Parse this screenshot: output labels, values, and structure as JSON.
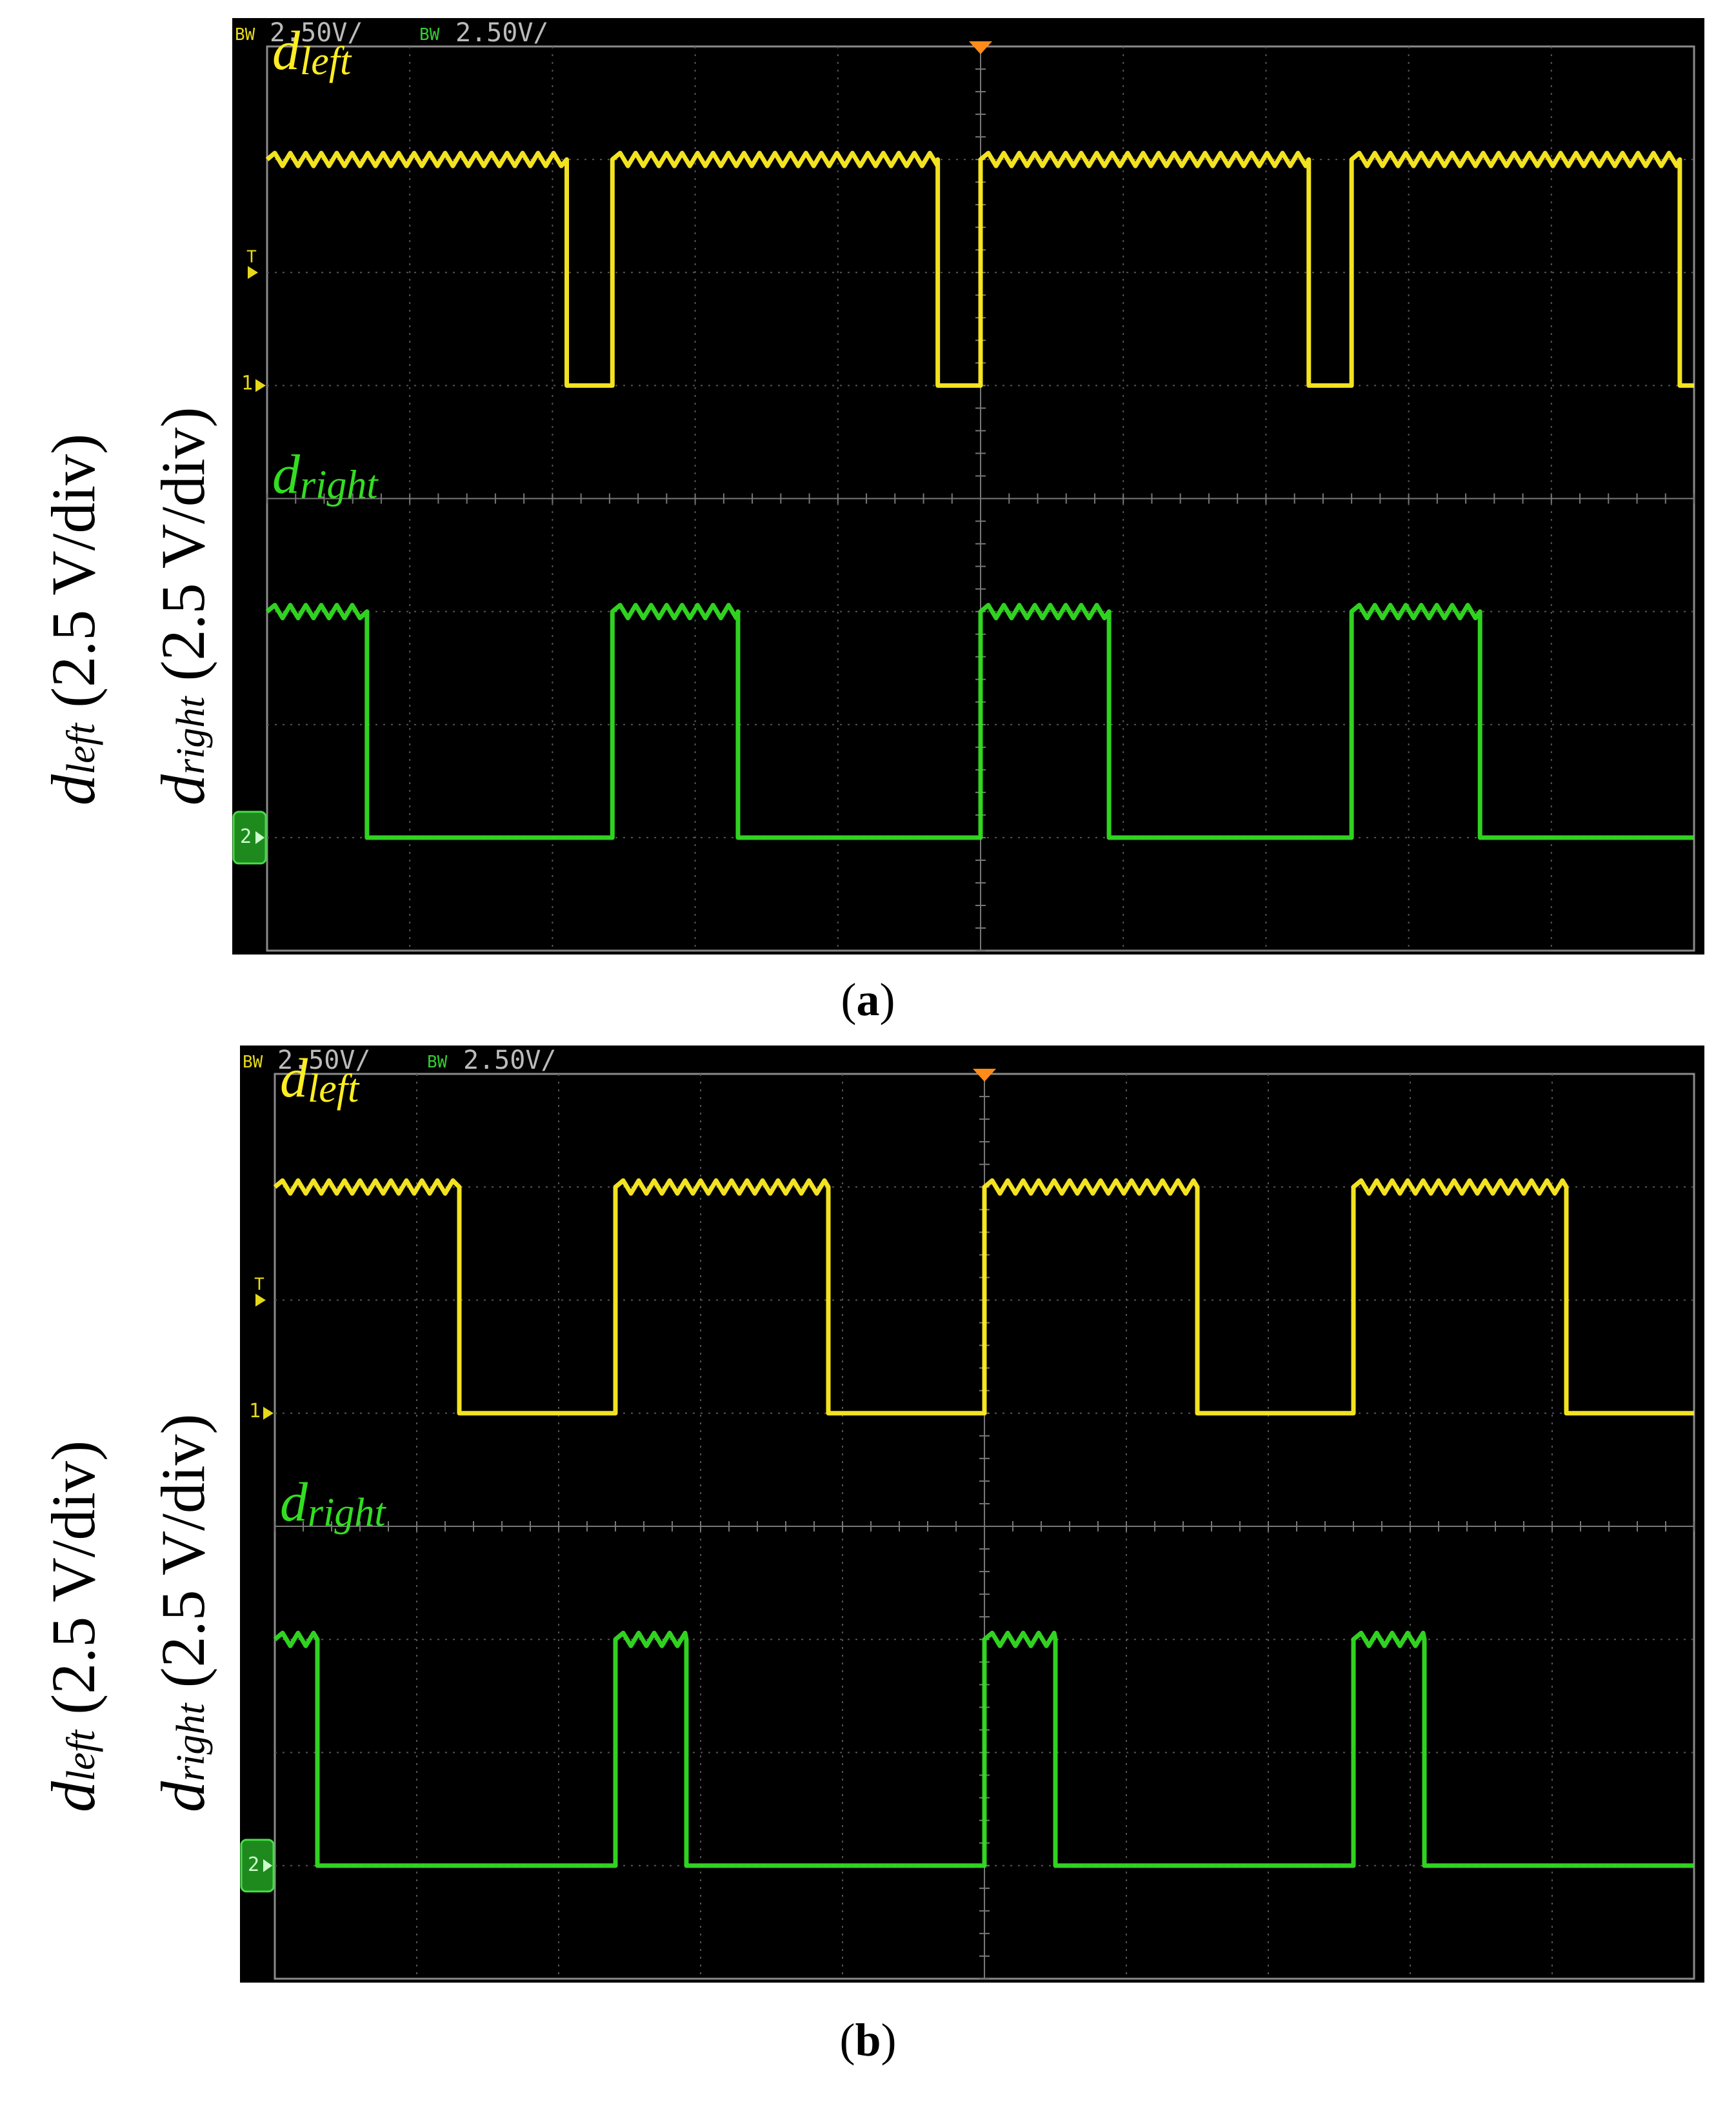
{
  "panels": [
    {
      "id": "a",
      "caption_letter": "a",
      "header": {
        "ch1_tag": "BW",
        "ch1_scale": "2.50V/",
        "ch2_tag": "BW",
        "ch2_scale": "2.50V/"
      },
      "markers": {
        "trigger": "T",
        "ch1": "1",
        "ch2": "2"
      },
      "yaxis": {
        "line1": {
          "sym": "d",
          "sub": "left",
          "unit": " (2.5 V/div)"
        },
        "line2": {
          "sym": "d",
          "sub": "right",
          "unit": " (2.5 V/div)"
        }
      },
      "chart_data": {
        "type": "line",
        "ylabel": "d_left (2.5 V/div), d_right (2.5 V/div)",
        "grid": true,
        "x_divisions": 10,
        "y_divisions": 8,
        "series": [
          {
            "name": "d_left",
            "color": "#ffee22",
            "label": {
              "sym": "d",
              "sub": "left"
            },
            "high_div": 3.0,
            "low_div": 1.0,
            "edges": [
              [
                0.0,
                1
              ],
              [
                2.1,
                0
              ],
              [
                2.42,
                1
              ],
              [
                4.7,
                0
              ],
              [
                5.0,
                1
              ],
              [
                7.3,
                0
              ],
              [
                7.6,
                1
              ],
              [
                9.9,
                0
              ],
              [
                10.0,
                0
              ]
            ]
          },
          {
            "name": "d_right",
            "color": "#33dd22",
            "label": {
              "sym": "d",
              "sub": "right"
            },
            "high_div": -1.0,
            "low_div": -3.0,
            "edges": [
              [
                0.0,
                1
              ],
              [
                0.7,
                0
              ],
              [
                2.42,
                1
              ],
              [
                3.3,
                0
              ],
              [
                5.0,
                1
              ],
              [
                5.9,
                0
              ],
              [
                7.6,
                1
              ],
              [
                8.5,
                0
              ],
              [
                10.0,
                0
              ]
            ]
          }
        ]
      }
    },
    {
      "id": "b",
      "caption_letter": "b",
      "header": {
        "ch1_tag": "BW",
        "ch1_scale": "2.50V/",
        "ch2_tag": "BW",
        "ch2_scale": "2.50V/"
      },
      "markers": {
        "trigger": "T",
        "ch1": "1",
        "ch2": "2"
      },
      "yaxis": {
        "line1": {
          "sym": "d",
          "sub": "left",
          "unit": " (2.5 V/div)"
        },
        "line2": {
          "sym": "d",
          "sub": "right",
          "unit": " (2.5 V/div)"
        }
      },
      "chart_data": {
        "type": "line",
        "ylabel": "d_left (2.5 V/div), d_right (2.5 V/div)",
        "grid": true,
        "x_divisions": 10,
        "y_divisions": 8,
        "series": [
          {
            "name": "d_left",
            "color": "#ffee22",
            "label": {
              "sym": "d",
              "sub": "left"
            },
            "high_div": 3.0,
            "low_div": 1.0,
            "edges": [
              [
                0.0,
                1
              ],
              [
                1.3,
                0
              ],
              [
                2.4,
                1
              ],
              [
                3.9,
                0
              ],
              [
                5.0,
                1
              ],
              [
                6.5,
                0
              ],
              [
                7.6,
                1
              ],
              [
                9.1,
                0
              ],
              [
                10.0,
                0
              ]
            ]
          },
          {
            "name": "d_right",
            "color": "#33dd22",
            "label": {
              "sym": "d",
              "sub": "right"
            },
            "high_div": -1.0,
            "low_div": -3.0,
            "edges": [
              [
                0.0,
                1
              ],
              [
                0.3,
                0
              ],
              [
                2.4,
                1
              ],
              [
                2.9,
                0
              ],
              [
                5.0,
                1
              ],
              [
                5.5,
                0
              ],
              [
                7.6,
                1
              ],
              [
                8.1,
                0
              ],
              [
                10.0,
                0
              ]
            ]
          }
        ]
      }
    }
  ]
}
